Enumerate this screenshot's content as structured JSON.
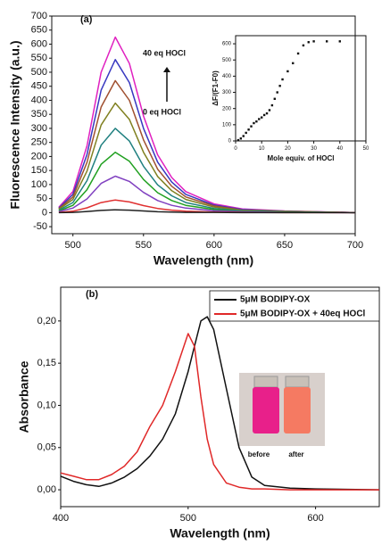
{
  "chart_data": [
    {
      "type": "line",
      "x": [
        490,
        500,
        510,
        520,
        530,
        540,
        550,
        560,
        570,
        580,
        600,
        620,
        650,
        700
      ],
      "series": [
        {
          "color": "#e020c0",
          "values": [
            19,
            75,
            238,
            500,
            625,
            531,
            344,
            206,
            125,
            75,
            31,
            13,
            6,
            0
          ]
        },
        {
          "color": "#3838c0",
          "values": [
            16,
            65,
            207,
            436,
            545,
            463,
            300,
            180,
            109,
            65,
            27,
            11,
            5,
            0
          ]
        },
        {
          "color": "#a05030",
          "values": [
            14,
            56,
            179,
            376,
            470,
            400,
            259,
            155,
            94,
            56,
            24,
            9,
            5,
            0
          ]
        },
        {
          "color": "#808020",
          "values": [
            12,
            47,
            148,
            312,
            390,
            332,
            215,
            129,
            78,
            47,
            20,
            8,
            4,
            0
          ]
        },
        {
          "color": "#208080",
          "values": [
            9,
            36,
            114,
            240,
            300,
            255,
            165,
            99,
            60,
            36,
            15,
            6,
            3,
            0
          ]
        },
        {
          "color": "#20a020",
          "values": [
            6,
            26,
            82,
            172,
            215,
            183,
            118,
            71,
            43,
            26,
            11,
            4,
            2,
            0
          ]
        },
        {
          "color": "#8040c0",
          "values": [
            4,
            16,
            49,
            104,
            130,
            111,
            72,
            43,
            26,
            16,
            7,
            3,
            1,
            0
          ]
        },
        {
          "color": "#e03030",
          "values": [
            1,
            5,
            17,
            36,
            45,
            38,
            25,
            15,
            9,
            5,
            2,
            1,
            0,
            0
          ]
        },
        {
          "color": "#202020",
          "values": [
            0,
            1,
            4,
            8,
            10,
            9,
            6,
            3,
            2,
            1,
            1,
            0,
            0,
            0
          ]
        }
      ],
      "xlim": [
        485,
        700
      ],
      "xticks": [
        500,
        550,
        600,
        650,
        700
      ],
      "ylim": [
        -75,
        700
      ],
      "yticks": [
        -50,
        0,
        50,
        100,
        150,
        200,
        250,
        300,
        350,
        400,
        450,
        500,
        550,
        600,
        650,
        700
      ],
      "xlabel": "Wavelength (nm)",
      "ylabel": "Fluorescence Intensity (a.u.)",
      "annotations": [
        "(a)",
        "40 eq HOCl",
        "0 eq HOCl"
      ]
    },
    {
      "type": "scatter",
      "x": [
        1,
        2,
        3,
        4,
        5,
        6,
        7,
        8,
        9,
        10,
        11,
        12,
        13,
        14,
        15,
        16,
        17,
        18,
        20,
        22,
        24,
        26,
        28,
        30,
        35,
        40
      ],
      "values": [
        5,
        15,
        30,
        50,
        70,
        90,
        110,
        120,
        135,
        145,
        160,
        170,
        190,
        220,
        260,
        300,
        340,
        380,
        430,
        480,
        540,
        590,
        610,
        615,
        615,
        615
      ],
      "color": "#111111",
      "xlim": [
        0,
        50
      ],
      "xticks": [
        0,
        10,
        20,
        30,
        40,
        50
      ],
      "ylim": [
        0,
        650
      ],
      "yticks": [
        0,
        100,
        200,
        300,
        400,
        500,
        600
      ],
      "xlabel": "Mole equiv. of HOCl",
      "ylabel": "ΔF/(F1-F0)"
    },
    {
      "type": "line",
      "x": [
        400,
        410,
        420,
        430,
        440,
        450,
        460,
        470,
        480,
        490,
        500,
        505,
        510,
        515,
        520,
        530,
        540,
        550,
        560,
        580,
        600,
        650
      ],
      "series": [
        {
          "name": "5μM BODIPY-OX",
          "color": "#111111",
          "values": [
            0.016,
            0.01,
            0.006,
            0.004,
            0.008,
            0.015,
            0.025,
            0.04,
            0.06,
            0.09,
            0.14,
            0.17,
            0.2,
            0.205,
            0.19,
            0.12,
            0.05,
            0.015,
            0.005,
            0.002,
            0.001,
            0
          ]
        },
        {
          "name": "5μM BODIPY-OX + 40eq HOCl",
          "color": "#e02828",
          "values": [
            0.02,
            0.016,
            0.012,
            0.012,
            0.018,
            0.028,
            0.045,
            0.075,
            0.1,
            0.14,
            0.185,
            0.17,
            0.11,
            0.06,
            0.03,
            0.008,
            0.003,
            0.001,
            0.001,
            0,
            0,
            0
          ]
        }
      ],
      "xlim": [
        400,
        650
      ],
      "xticks": [
        400,
        500,
        600
      ],
      "ylim": [
        -0.02,
        0.24
      ],
      "yticks": [
        {
          "value": 0,
          "label": "0,00"
        },
        {
          "value": 0.05,
          "label": "0,05"
        },
        {
          "value": 0.1,
          "label": "0,10"
        },
        {
          "value": 0.15,
          "label": "0,15"
        },
        {
          "value": 0.2,
          "label": "0,20"
        }
      ],
      "xlabel": "Wavelength (nm)",
      "ylabel": "Absorbance",
      "legend": "upper right",
      "annotations": [
        "(b)",
        "before",
        "after"
      ]
    }
  ]
}
